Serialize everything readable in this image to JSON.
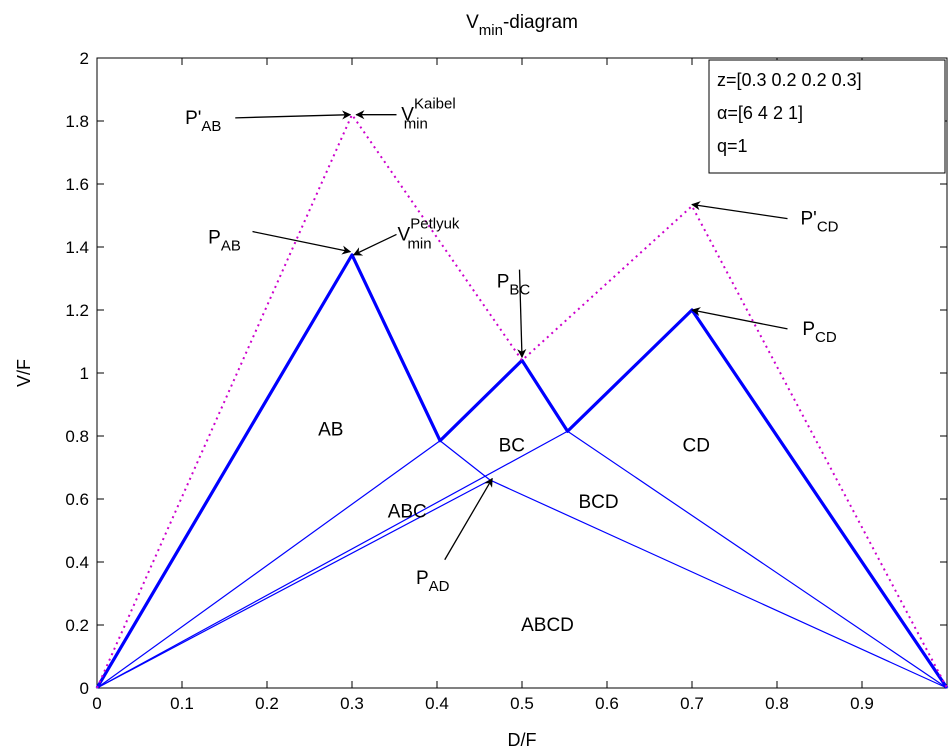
{
  "chart_data": {
    "type": "line",
    "title": {
      "main": "V",
      "sub": "min",
      "rest": "-diagram"
    },
    "xlabel": "D/F",
    "ylabel": "V/F",
    "xlim": [
      0,
      1
    ],
    "ylim": [
      0,
      2
    ],
    "xticks": [
      0,
      0.1,
      0.2,
      0.3,
      0.4,
      0.5,
      0.6,
      0.7,
      0.8,
      0.9
    ],
    "xtick_labels": [
      "0",
      "0.1",
      "0.2",
      "0.3",
      "0.4",
      "0.5",
      "0.6",
      "0.7",
      "0.8",
      "0.9"
    ],
    "yticks": [
      0,
      0.2,
      0.4,
      0.6,
      0.8,
      1,
      1.2,
      1.4,
      1.6,
      1.8,
      2
    ],
    "ytick_labels": [
      "0",
      "0.2",
      "0.4",
      "0.6",
      "0.8",
      "1",
      "1.2",
      "1.4",
      "1.6",
      "1.8",
      "2"
    ],
    "grid": false,
    "colors": {
      "blue": "#0000ff",
      "magenta": "#cc00cc",
      "black": "#000000"
    },
    "series": [
      {
        "style": "thick",
        "color": "blue",
        "x": [
          0,
          0.3,
          0.4036,
          0.5,
          0.5536,
          0.7,
          1
        ],
        "y": [
          0,
          1.375,
          0.785,
          1.04,
          0.815,
          1.2,
          0
        ]
      },
      {
        "style": "thin",
        "color": "blue",
        "x": [
          0,
          0.4036
        ],
        "y": [
          0,
          0.785
        ]
      },
      {
        "style": "thin",
        "color": "blue",
        "x": [
          0.4036,
          0.4625,
          1
        ],
        "y": [
          0.785,
          0.66,
          0
        ]
      },
      {
        "style": "thin",
        "color": "blue",
        "x": [
          0.5536,
          1
        ],
        "y": [
          0.815,
          0
        ]
      },
      {
        "style": "thin",
        "color": "blue",
        "x": [
          0,
          0.5536
        ],
        "y": [
          0,
          0.815
        ]
      },
      {
        "style": "thin",
        "color": "blue",
        "x": [
          0,
          0.4625
        ],
        "y": [
          0,
          0.66
        ]
      },
      {
        "style": "dotted",
        "color": "magenta",
        "x": [
          0,
          0.3,
          0.5,
          0.7,
          1
        ],
        "y": [
          0,
          1.82,
          1.04,
          1.53,
          0
        ]
      }
    ],
    "region_labels": [
      {
        "text": "AB",
        "x": 0.275,
        "y": 0.82
      },
      {
        "text": "BC",
        "x": 0.488,
        "y": 0.77
      },
      {
        "text": "CD",
        "x": 0.705,
        "y": 0.77
      },
      {
        "text": "ABC",
        "x": 0.365,
        "y": 0.56
      },
      {
        "text": "BCD",
        "x": 0.59,
        "y": 0.59
      },
      {
        "text": "ABCD",
        "x": 0.53,
        "y": 0.2
      }
    ],
    "annotations": [
      {
        "id": "p-prime-ab",
        "main": "P'",
        "sub": "AB",
        "sup": "",
        "tx": 0.125,
        "ty": 1.81,
        "ax": 0.298,
        "ay": 1.82
      },
      {
        "id": "v-min-kaibel",
        "main": "V",
        "sub": "min",
        "sup": "Kaibel",
        "tx": 0.39,
        "ty": 1.82,
        "ax": 0.305,
        "ay": 1.82
      },
      {
        "id": "p-ab",
        "main": "P",
        "sub": "AB",
        "sup": "",
        "tx": 0.15,
        "ty": 1.43,
        "ax": 0.298,
        "ay": 1.385
      },
      {
        "id": "v-min-petlyuk",
        "main": "V",
        "sub": "min",
        "sup": "Petlyuk",
        "tx": 0.39,
        "ty": 1.44,
        "ax": 0.302,
        "ay": 1.375
      },
      {
        "id": "p-bc",
        "main": "P",
        "sub": "BC",
        "sup": "",
        "tx": 0.49,
        "ty": 1.29,
        "ax": 0.5,
        "ay": 1.05
      },
      {
        "id": "p-prime-cd",
        "main": "P'",
        "sub": "CD",
        "sup": "",
        "tx": 0.85,
        "ty": 1.49,
        "ax": 0.7,
        "ay": 1.535
      },
      {
        "id": "p-cd",
        "main": "P",
        "sub": "CD",
        "sup": "",
        "tx": 0.85,
        "ty": 1.14,
        "ax": 0.7,
        "ay": 1.2
      },
      {
        "id": "p-ad",
        "main": "P",
        "sub": "AD",
        "sup": "",
        "tx": 0.395,
        "ty": 0.35,
        "ax": 0.465,
        "ay": 0.665
      }
    ],
    "legend": {
      "placement": "top-right",
      "lines": [
        {
          "text": "z=[0.3 0.2 0.2 0.3]"
        },
        {
          "text": "=[6 4 2 1]",
          "prefix_symbol": "α"
        },
        {
          "text": "q=1"
        }
      ]
    }
  }
}
